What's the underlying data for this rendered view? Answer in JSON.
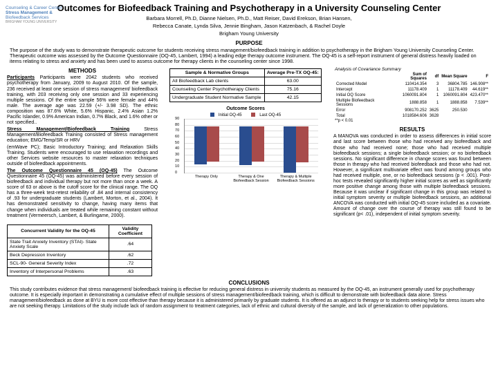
{
  "title": "Outcomes for Biofeedback Training and Psychotherapy in a University Counseling Center",
  "authors1": "Barbara Morrell, Ph.D, Dianne Nielsen, Ph.D., Matt Reiser, David Erekson, Brian Hansen,",
  "authors2": "Rebecca Canate, Lynda Silva, Jennie Bingham, Jason Katzenbach, & Rachel Doyle",
  "inst": "Brigham Young University",
  "logo": {
    "l1": "Counseling & Career Center",
    "l2": "Stress Management &",
    "l3": "Biofeedback Services",
    "l4": "BRIGHAM YOUNG UNIVERSITY"
  },
  "h": {
    "purpose": "PURPOSE",
    "methods": "METHODS",
    "results": "RESULTS",
    "conc": "CONCLUSIONS"
  },
  "purpose": "The purpose of the study was to demonstrate therapeutic outcome for students receiving stress management/biofeedback training in addition to psychotherapy in the Brigham Young University Counseling Center. Therapeutic outcome was assessed by the Outcome Questionnaire (OQ-45, Lambert, 1994) a leading edge therapy outcome instrument. The OQ-45 is a self-report instrument of general distress heavily loaded on items relating to stress and anxiety and has  been used to assess outcome for therapy clients in the counseling center since 1998.",
  "methods": {
    "p1": "Participants were 2042 students who received psychotherapy from January, 2009 to August 2010. Of the sample, 236 received at least one session of stress management/ biofeedback training, with 203 receiving only one session and 33 experiencing multiple sessions. Of the entire sample 56% were female and 44% male. The average age was 22.59 (+/- 3.98 SD). The ethnic composition was 87.6% White, 5.6% Hispanic, 2.4% Asian 1.2% Pacific Islander, 0.9% American Indian, 0.7% Black, and 1.6% other or not specified..",
    "p2": "Stress Management/Biofeedback Training consisted of Stress management education; EMG/Temp/SR or HRV",
    "p3": "(emWave PC); Basic Introductory Training; and Relaxation Skills Training.  Students were encouraged to use relaxation recordings and other Services website resources to master relaxation techniques outside of biofeedback appointments.",
    "p4": "The Outcome Questionnaire 45 (OQ-45) was administered before every session of biofeedback and individual therapy but not more than once a week. A score of 63 or above is the cutoff score for the clinical range. The OQ has a three-week test-retest reliability of .84 and internal consistency of .93 for undergraduate students (Lambert, Morton, et al., 2004). It has demonstrated sensitivity to change, having many items that change when individuals are treated while remaining constant without treatment (Vermeersch, Lambert, & Burlingame, 2000)."
  },
  "samp": {
    "h1": "Sample & Normative  Groups",
    "h2": "Average Pre-TX OQ-45:",
    "r1": {
      "a": "All Biofeedback Lab clients",
      "b": "63.00"
    },
    "r2": {
      "a": "Counseling Center Psychotherapy Clients",
      "b": "75.16"
    },
    "r3": {
      "a": "Undergraduate Student Normative Sample",
      "b": "42.15"
    }
  },
  "chart": {
    "title": "Outcome Scores",
    "leg1": "Initial OQ-45",
    "leg2": "Last OQ-45",
    "ymax": 90,
    "ystep": 10,
    "cats": [
      "Therapy Only",
      "Therapy & One Biofeedback Session",
      "Therapy & Multiple Biofeedback Sessions"
    ],
    "s1": [
      63,
      64,
      77
    ],
    "s2": [
      58,
      58,
      60
    ],
    "c1": "#2a4d8f",
    "c2": "#a84b4b"
  },
  "anova": {
    "title": "Analysis of Covariance Summary",
    "h": [
      "",
      "Sum of Squares",
      "df",
      "Mean Square",
      "F"
    ],
    "rows": [
      [
        "Corrected Model",
        "110414.354",
        "3",
        "36804.785",
        "146.908**"
      ],
      [
        "Intercept",
        "11178.409",
        "1",
        "11178.409",
        "44.619**"
      ],
      [
        "Initial OQ Score",
        "1060091.804",
        "1",
        "1060091.804",
        "423.470**"
      ],
      [
        "Multiple Biofeedback Sessions",
        "1888.858",
        "1",
        "1888.858",
        "7.539**"
      ],
      [
        "Error",
        "908170.252",
        "3625",
        "250.530",
        ""
      ],
      [
        "Total",
        "1018584.606",
        "3628",
        "",
        ""
      ]
    ],
    "note": "**p < 0.01"
  },
  "results": "A  MANOVA was conducted in order to assess differences in initial score and last score between those who had received any biofeedback and those who had received none; those who had received multiple biofeedback sessions; a single biofeedback session; or no biofeedback sessions. No significant difference in change scores was found between those in therapy who had received biofeedback and those who had not.  However, a significant  multivariate effect was found among groups who had received multiple, one, or no biofeedback sessions (p < .001).  Post-hoc tests revealed significantly higher initial scores  as well as significantly more positive change among those with multiple biofeedback sessions. Because it was unclear if significant change in this group was related to initial symptom severity or multiple biofeedback sessions, an additional ANCOVA was conducted with initial OQ-45 score included as a covariate.  Amount of change over the course of therapy was still found to be significant (p< .01), independent of initial symptom severity.",
  "conc": "This study contributes evidence that stress management/ biofeedback training is effective for reducing general distress  in university students as measured by the OQ-45, an instrument generally used for psychotherapy outcome. It is especially important in demonstrating a cumulative effect of multiple sessions of  stress management/biofeedback training, which is difficult to demonstrate with biofeedback data alone. Stress management/biofeedback as done at BYU is more cost effective than therapy because it is administered primarily by graduate students. It is offered as an adjunct to therapy or to students seeking help for stress issues who are not seeking therapy.  Limitations of the study include lack of random assignment to treatment categories, lack of ethnic and cultural diversity of the sample, and lack of generalization to other populations.",
  "valid": {
    "h1": "Concurrent Validity for the OQ-45",
    "h2": "Validity Coefficient",
    "rows": [
      [
        "State Trait Anxiety Inventory (STAI)- State Anxiety Scale",
        ".64"
      ],
      [
        "Beck Depression Inventory",
        ".62"
      ],
      [
        "SCL-90- General Severity Index",
        ".72"
      ],
      [
        "Inventory of Interpersonal Problems",
        ".63"
      ]
    ]
  }
}
